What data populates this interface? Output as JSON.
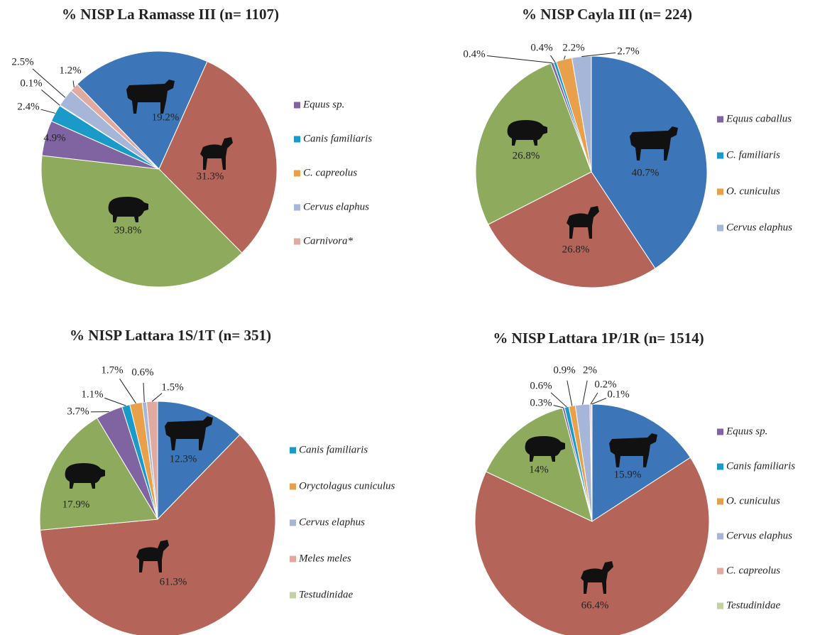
{
  "chart_data": [
    {
      "type": "pie",
      "title": "% NISP La Ramasse III (n= 1107)",
      "categories": [
        null,
        null,
        null,
        "Equus sp.",
        "Canis familiaris",
        "C. capreolus",
        "Cervus elaphus",
        "Carnivora*"
      ],
      "values": [
        19.2,
        31.3,
        39.8,
        4.9,
        2.4,
        0.1,
        2.5,
        1.2
      ],
      "value_labels": [
        "19.2%",
        "31.3%",
        "39.8%",
        "4.9%",
        "2.4%",
        "0.1%",
        "2.5%",
        "1.2%"
      ],
      "colors": [
        "#3d76b8",
        "#b5645a",
        "#8daa5d",
        "#8064a2",
        "#1a9ac9",
        "#e8a04a",
        "#a6b6d9",
        "#e0aaa0"
      ]
    },
    {
      "type": "pie",
      "title": "% NISP Cayla III (n= 224)",
      "categories": [
        null,
        null,
        null,
        "Equus caballus",
        "C. familiaris",
        "O. cuniculus",
        "Cervus elaphus"
      ],
      "values": [
        40.7,
        26.8,
        26.8,
        0.4,
        0.4,
        2.2,
        2.7
      ],
      "value_labels": [
        "40.7%",
        "26.8%",
        "26.8%",
        "0.4%",
        "0.4%",
        "2.2%",
        "2.7%"
      ],
      "colors": [
        "#3d76b8",
        "#b5645a",
        "#8daa5d",
        "#8064a2",
        "#1a9ac9",
        "#e8a04a",
        "#a6b6d9"
      ]
    },
    {
      "type": "pie",
      "title": "% NISP Lattara 1S/1T (n= 351)",
      "categories": [
        null,
        null,
        null,
        null,
        "Canis familiaris",
        "Oryctolagus cuniculus",
        "Cervus elaphus",
        "Meles meles",
        "Testudinidae"
      ],
      "values": [
        12.3,
        61.3,
        17.9,
        3.7,
        1.1,
        1.7,
        0.6,
        1.5,
        0
      ],
      "value_labels": [
        "12.3%",
        "61.3%",
        "17.9%",
        "3.7%",
        "1.1%",
        "1.7%",
        "0.6%",
        "1.5%",
        null
      ],
      "colors": [
        "#3d76b8",
        "#b5645a",
        "#8daa5d",
        "#8064a2",
        "#1a9ac9",
        "#e8a04a",
        "#a6b6d9",
        "#e0aaa0",
        "#c4d0a5"
      ]
    },
    {
      "type": "pie",
      "title": "% NISP Lattara 1P/1R (n= 1514)",
      "categories": [
        null,
        null,
        null,
        "Equus sp.",
        "Canis familiaris",
        "O. cuniculus",
        "Cervus elaphus",
        "C. capreolus",
        "Testudinidae"
      ],
      "values": [
        15.9,
        66.4,
        14,
        0.3,
        0.6,
        0.9,
        2,
        0.2,
        0.1
      ],
      "value_labels": [
        "15.9%",
        "66.4%",
        "14%",
        "0.3%",
        "0.6%",
        "0.9%",
        "2%",
        "0.2%",
        "0.1%"
      ],
      "colors": [
        "#3d76b8",
        "#b5645a",
        "#8daa5d",
        "#8064a2",
        "#1a9ac9",
        "#e8a04a",
        "#a6b6d9",
        "#e0aaa0",
        "#c4d0a5"
      ]
    }
  ]
}
